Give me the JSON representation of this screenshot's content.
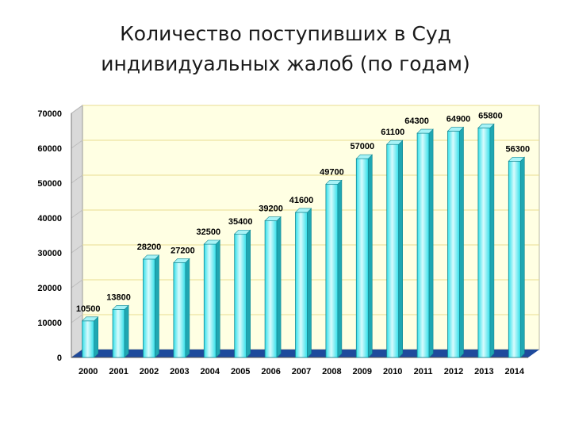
{
  "slide": {
    "title_line1": "Количество поступивших в Суд",
    "title_line2": "индивидуальных жалоб (по годам)"
  },
  "chart_data": {
    "type": "bar",
    "categories": [
      "2000",
      "2001",
      "2002",
      "2003",
      "2004",
      "2005",
      "2006",
      "2007",
      "2008",
      "2009",
      "2010",
      "2011",
      "2012",
      "2013",
      "2014"
    ],
    "values": [
      10500,
      13800,
      28200,
      27200,
      32500,
      35400,
      39200,
      41600,
      49700,
      57000,
      61100,
      64300,
      64900,
      65800,
      56300
    ],
    "data_labels": [
      "10500",
      "13800",
      "28200",
      "27200",
      "32500",
      "35400",
      "39200",
      "41600",
      "49700",
      "57000",
      "61100",
      "64300",
      "64900",
      "65800",
      "56300"
    ],
    "y_ticks": [
      0,
      10000,
      20000,
      30000,
      40000,
      50000,
      60000,
      70000
    ],
    "ylim": [
      0,
      70000
    ],
    "grid": true,
    "legend": "none",
    "colors": {
      "bar_front": "#33e0ea",
      "bar_highlight": "#d8fbfd",
      "bar_side": "#1fa7b2",
      "bar_top": "#a7f3f7",
      "wall": "#ffffe3",
      "floor": "#1e4a9c",
      "gridline": "#e8de90"
    }
  }
}
